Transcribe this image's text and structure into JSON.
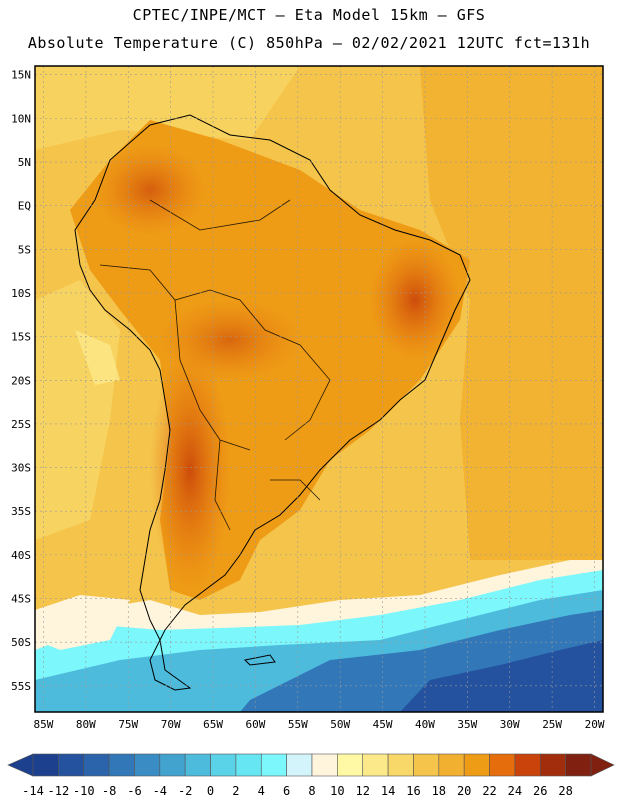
{
  "title": {
    "line1": "CPTEC/INPE/MCT –  Eta Model 15km – GFS",
    "line2": "Absolute Temperature (C) 850hPa – 02/02/2021 12UTC fct=131h"
  },
  "chart_data": {
    "type": "heatmap",
    "variable": "Absolute Temperature",
    "units": "C",
    "level": "850hPa",
    "model": "Eta Model 15km – GFS",
    "run": "02/02/2021 12UTC",
    "forecast_hour": "131h",
    "lon_range": [
      -86,
      -19
    ],
    "lat_range": [
      -58,
      16
    ],
    "lon_ticks": [
      "85W",
      "80W",
      "75W",
      "70W",
      "65W",
      "60W",
      "55W",
      "50W",
      "45W",
      "40W",
      "35W",
      "30W",
      "25W",
      "20W"
    ],
    "lat_ticks": [
      "15N",
      "10N",
      "5N",
      "EQ",
      "5S",
      "10S",
      "15S",
      "20S",
      "25S",
      "30S",
      "35S",
      "40S",
      "45S",
      "50S",
      "55S"
    ],
    "colorbar": {
      "labels": [
        "-14",
        "-12",
        "-10",
        "-8",
        "-6",
        "-4",
        "-2",
        "0",
        "2",
        "4",
        "6",
        "8",
        "10",
        "12",
        "14",
        "16",
        "18",
        "20",
        "22",
        "24",
        "26",
        "28"
      ],
      "colors": [
        "#1c3f8e",
        "#24529e",
        "#2b64ab",
        "#3277b8",
        "#3a8cc4",
        "#42a3cf",
        "#4dbbdc",
        "#5ad2e8",
        "#66e6f2",
        "#7cf7fb",
        "#d3f4fb",
        "#fff4dc",
        "#fff9a6",
        "#fce98a",
        "#f8d868",
        "#f5c44b",
        "#f2b030",
        "#ee9b16",
        "#e56d0c",
        "#c9430a",
        "#a22d0d",
        "#7f2011"
      ]
    }
  }
}
